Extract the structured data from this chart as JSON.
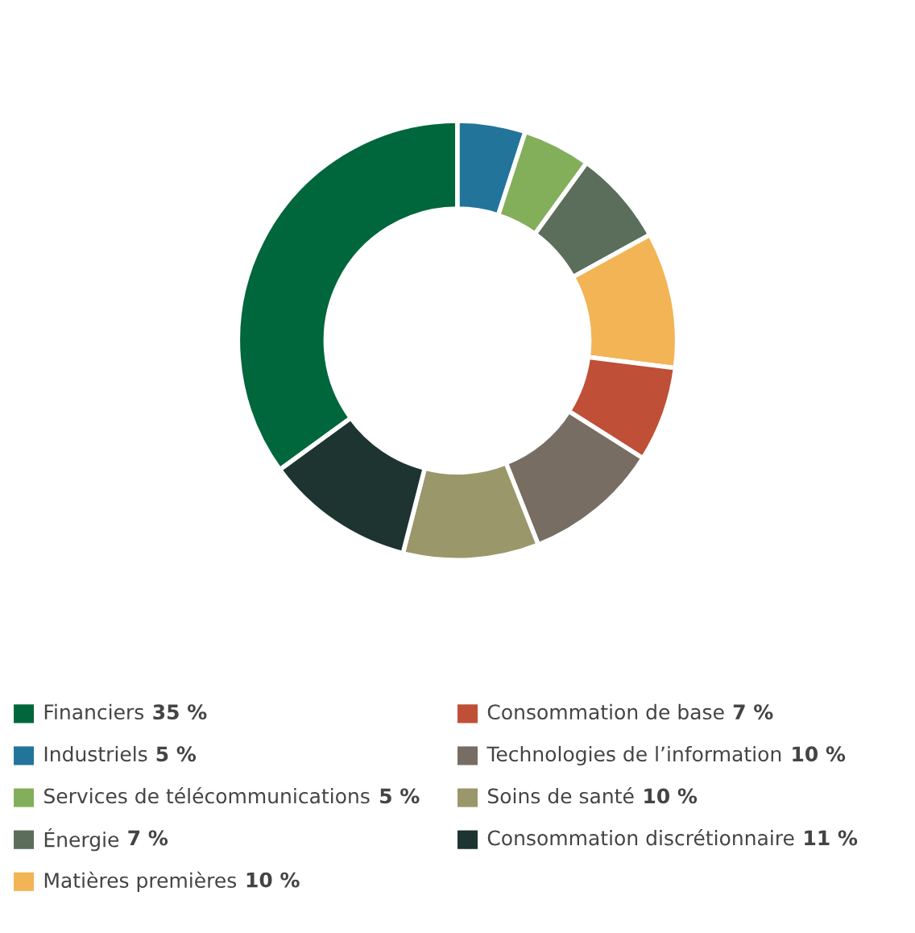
{
  "chart_data": {
    "type": "donut",
    "categories": [
      "Financiers",
      "Industriels",
      "Services de télécommunications",
      "Énergie",
      "Matières premières",
      "Consommation de base",
      "Technologies de l’information",
      "Soins de santé",
      "Consommation discrétionnaire"
    ],
    "values": [
      35,
      5,
      5,
      7,
      10,
      7,
      10,
      10,
      11
    ],
    "value_labels": [
      "35 %",
      "5 %",
      "5 %",
      "7 %",
      "10 %",
      "7 %",
      "10 %",
      "10 %",
      "11 %"
    ],
    "colors": [
      "#00673c",
      "#23749b",
      "#84af5a",
      "#5a6e5b",
      "#f3b456",
      "#bf4f36",
      "#776d63",
      "#9a976b",
      "#1d3430"
    ],
    "legend": "bottom"
  }
}
